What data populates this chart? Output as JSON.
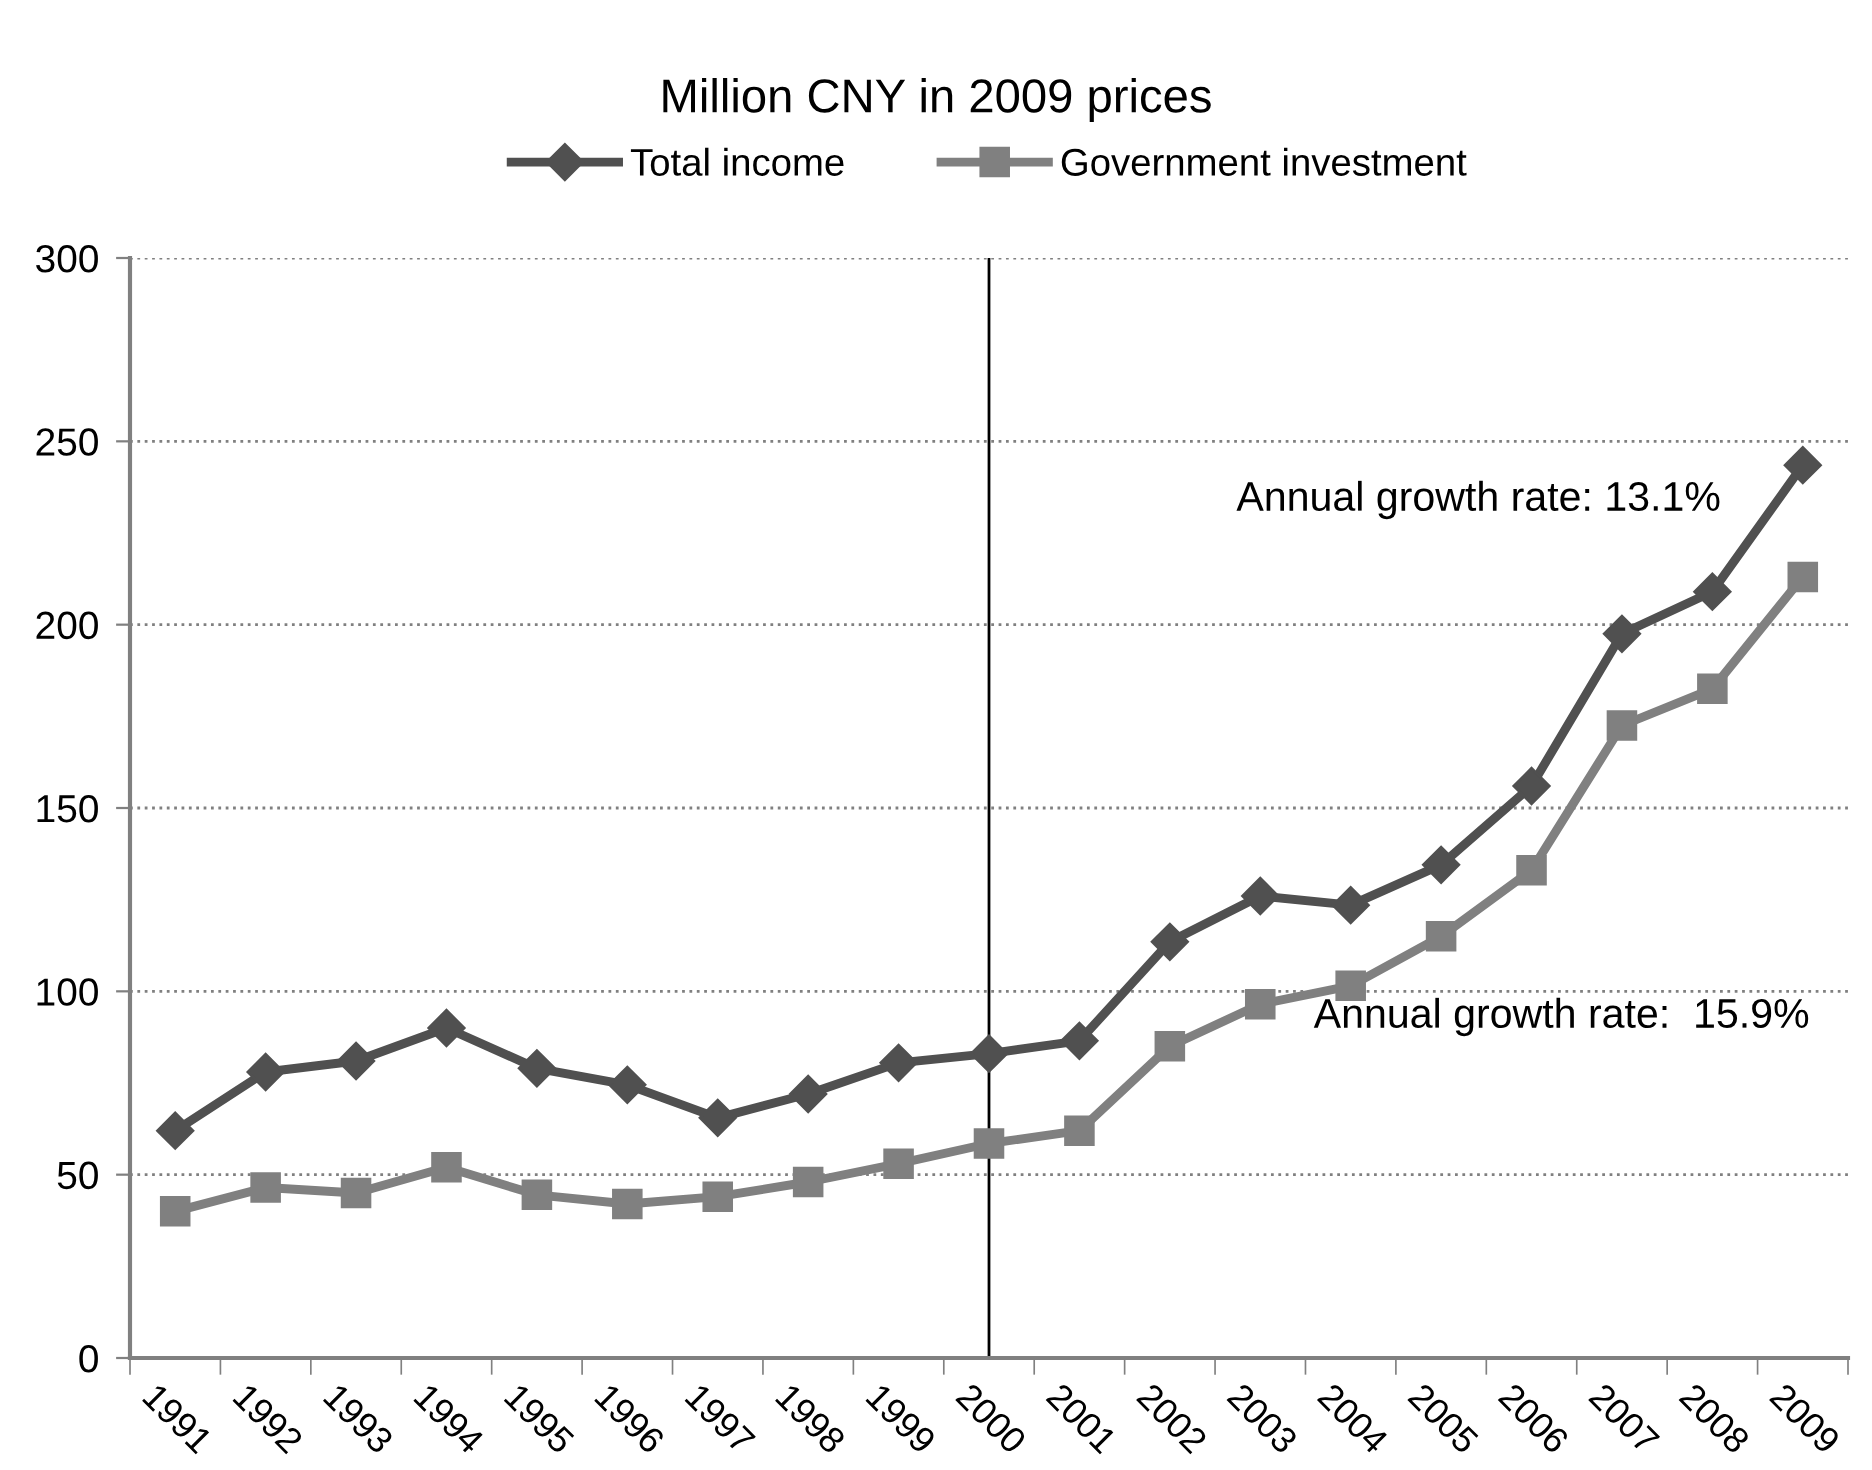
{
  "chart_data": {
    "type": "line",
    "title": "Million CNY in 2009 prices",
    "categories": [
      "1991",
      "1992",
      "1993",
      "1994",
      "1995",
      "1996",
      "1997",
      "1998",
      "1999",
      "2000",
      "2001",
      "2002",
      "2003",
      "2004",
      "2005",
      "2006",
      "2007",
      "2008",
      "2009"
    ],
    "series": [
      {
        "name": "Total income",
        "color": "#505050",
        "marker": "diamond",
        "values": [
          62,
          78,
          81,
          90,
          79,
          74.5,
          65.5,
          72,
          80.5,
          83,
          86.5,
          113.5,
          126,
          123.5,
          134.5,
          156,
          197.5,
          209,
          243.5
        ]
      },
      {
        "name": "Government investment",
        "color": "#808080",
        "marker": "square",
        "values": [
          40,
          46.5,
          45,
          52,
          44.5,
          42,
          44,
          48,
          53,
          58.5,
          62,
          85,
          96.5,
          101.5,
          115,
          133,
          172.5,
          182.5,
          213
        ]
      }
    ],
    "ylim": [
      0,
      300
    ],
    "yticks": [
      0,
      50,
      100,
      150,
      200,
      250,
      300
    ],
    "grid": "y",
    "legend": "top",
    "line_style": "solid",
    "ref_lines": [
      {
        "axis": "x",
        "value": "2000",
        "color": "#000000"
      }
    ],
    "annotations": [
      "Annual growth rate: 13.1%",
      "Annual growth rate:  15.9%"
    ]
  }
}
